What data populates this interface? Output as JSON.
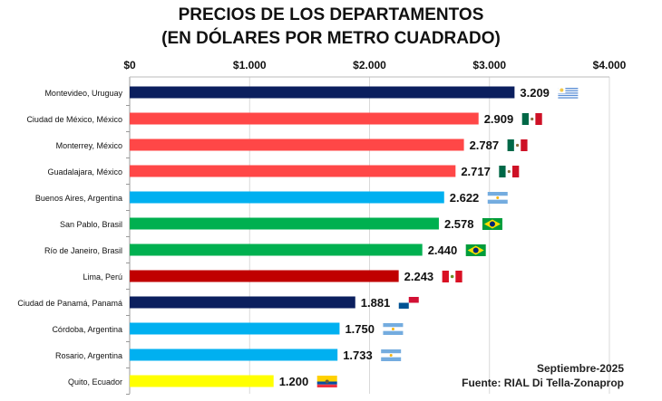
{
  "chart_data": {
    "type": "bar",
    "orientation": "horizontal",
    "title_line1": "PRECIOS DE LOS DEPARTAMENTOS",
    "title_line2": "(EN DÓLARES POR METRO CUADRADO)",
    "categories": [
      "Montevideo, Uruguay",
      "Ciudad de México, México",
      "Monterrey, México",
      "Guadalajara, México",
      "Buenos Aires, Argentina",
      "San Pablo, Brasil",
      "Río de Janeiro, Brasil",
      "Lima, Perú",
      "Ciudad de Panamá, Panamá",
      "Córdoba, Argentina",
      "Rosario, Argentina",
      "Quito, Ecuador"
    ],
    "values": [
      3209,
      2909,
      2787,
      2717,
      2622,
      2578,
      2440,
      2243,
      1881,
      1750,
      1733,
      1200
    ],
    "value_labels": [
      "3.209",
      "2.909",
      "2.787",
      "2.717",
      "2.622",
      "2.578",
      "2.440",
      "2.243",
      "1.881",
      "1.750",
      "1.733",
      "1.200"
    ],
    "bar_colors": [
      "#0b1f5e",
      "#ff4747",
      "#ff4747",
      "#ff4747",
      "#00b0f0",
      "#00b050",
      "#00b050",
      "#c00000",
      "#0b1f5e",
      "#00b0f0",
      "#00b0f0",
      "#ffff00"
    ],
    "flags": [
      "uruguay",
      "mexico",
      "mexico",
      "mexico",
      "argentina",
      "brazil",
      "brazil",
      "peru",
      "panama",
      "argentina",
      "argentina",
      "ecuador"
    ],
    "xlim": [
      0,
      4000
    ],
    "xticks": [
      0,
      1000,
      2000,
      3000,
      4000
    ],
    "xtick_labels": [
      "$0",
      "$1.000",
      "$2.000",
      "$3.000",
      "$4.000"
    ],
    "axis_position": "top",
    "grid": true
  },
  "notes": {
    "date": "Septiembre-2025",
    "source": "Fuente: RIAL Di Tella-Zonaprop"
  }
}
